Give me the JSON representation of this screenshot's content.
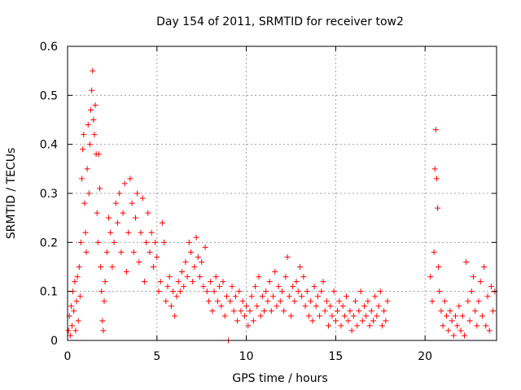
{
  "chart_data": {
    "type": "scatter",
    "title": "Day 154 of 2011, SRMTID for receiver tow2",
    "xlabel": "GPS time / hours",
    "ylabel": "SRMTID / TECUs",
    "xlim": [
      0,
      24
    ],
    "ylim": [
      0,
      0.6
    ],
    "xticks": [
      0,
      5,
      10,
      15,
      20
    ],
    "xtick_labels": [
      "0",
      "5",
      "10",
      "15",
      "20"
    ],
    "yticks": [
      0,
      0.1,
      0.2,
      0.3,
      0.4,
      0.5,
      0.6
    ],
    "ytick_labels": [
      "0",
      "0.1",
      "0.2",
      "0.3",
      "0.4",
      "0.5",
      "0.6"
    ],
    "grid": true,
    "marker": "plus",
    "color": "#ff0000",
    "series": [
      {
        "name": "SRMTID",
        "points": [
          [
            0.05,
            0.02
          ],
          [
            0.1,
            0.05
          ],
          [
            0.15,
            0.01
          ],
          [
            0.2,
            0.07
          ],
          [
            0.25,
            0.03
          ],
          [
            0.3,
            0.1
          ],
          [
            0.35,
            0.06
          ],
          [
            0.4,
            0.12
          ],
          [
            0.45,
            0.02
          ],
          [
            0.5,
            0.08
          ],
          [
            0.55,
            0.13
          ],
          [
            0.6,
            0.04
          ],
          [
            0.65,
            0.15
          ],
          [
            0.7,
            0.09
          ],
          [
            0.75,
            0.2
          ],
          [
            0.8,
            0.33
          ],
          [
            0.85,
            0.39
          ],
          [
            0.9,
            0.42
          ],
          [
            0.95,
            0.28
          ],
          [
            1.0,
            0.22
          ],
          [
            1.05,
            0.18
          ],
          [
            1.1,
            0.35
          ],
          [
            1.15,
            0.44
          ],
          [
            1.2,
            0.3
          ],
          [
            1.25,
            0.4
          ],
          [
            1.3,
            0.47
          ],
          [
            1.35,
            0.51
          ],
          [
            1.4,
            0.55
          ],
          [
            1.45,
            0.45
          ],
          [
            1.5,
            0.42
          ],
          [
            1.55,
            0.48
          ],
          [
            1.6,
            0.38
          ],
          [
            1.65,
            0.26
          ],
          [
            1.7,
            0.2
          ],
          [
            1.75,
            0.38
          ],
          [
            1.8,
            0.31
          ],
          [
            1.85,
            0.15
          ],
          [
            1.9,
            0.1
          ],
          [
            1.95,
            0.04
          ],
          [
            2.0,
            0.02
          ],
          [
            2.05,
            0.08
          ],
          [
            2.1,
            0.12
          ],
          [
            2.2,
            0.18
          ],
          [
            2.3,
            0.25
          ],
          [
            2.4,
            0.22
          ],
          [
            2.5,
            0.15
          ],
          [
            2.6,
            0.2
          ],
          [
            2.7,
            0.28
          ],
          [
            2.8,
            0.24
          ],
          [
            2.9,
            0.3
          ],
          [
            3.0,
            0.18
          ],
          [
            3.1,
            0.26
          ],
          [
            3.2,
            0.32
          ],
          [
            3.3,
            0.14
          ],
          [
            3.4,
            0.22
          ],
          [
            3.5,
            0.33
          ],
          [
            3.6,
            0.28
          ],
          [
            3.7,
            0.18
          ],
          [
            3.8,
            0.25
          ],
          [
            3.9,
            0.3
          ],
          [
            4.0,
            0.16
          ],
          [
            4.1,
            0.22
          ],
          [
            4.2,
            0.29
          ],
          [
            4.3,
            0.12
          ],
          [
            4.4,
            0.2
          ],
          [
            4.5,
            0.26
          ],
          [
            4.6,
            0.18
          ],
          [
            4.7,
            0.22
          ],
          [
            4.8,
            0.15
          ],
          [
            4.9,
            0.2
          ],
          [
            5.0,
            0.17
          ],
          [
            5.1,
            0.1
          ],
          [
            5.2,
            0.12
          ],
          [
            5.3,
            0.24
          ],
          [
            5.4,
            0.2
          ],
          [
            5.5,
            0.08
          ],
          [
            5.6,
            0.11
          ],
          [
            5.7,
            0.13
          ],
          [
            5.8,
            0.07
          ],
          [
            5.9,
            0.1
          ],
          [
            6.0,
            0.05
          ],
          [
            6.1,
            0.09
          ],
          [
            6.2,
            0.12
          ],
          [
            6.3,
            0.1
          ],
          [
            6.4,
            0.14
          ],
          [
            6.5,
            0.11
          ],
          [
            6.6,
            0.16
          ],
          [
            6.7,
            0.13
          ],
          [
            6.8,
            0.2
          ],
          [
            6.9,
            0.18
          ],
          [
            7.0,
            0.12
          ],
          [
            7.1,
            0.15
          ],
          [
            7.2,
            0.21
          ],
          [
            7.3,
            0.17
          ],
          [
            7.4,
            0.13
          ],
          [
            7.5,
            0.16
          ],
          [
            7.6,
            0.11
          ],
          [
            7.7,
            0.19
          ],
          [
            7.8,
            0.1
          ],
          [
            7.9,
            0.08
          ],
          [
            8.0,
            0.12
          ],
          [
            8.1,
            0.06
          ],
          [
            8.2,
            0.1
          ],
          [
            8.3,
            0.13
          ],
          [
            8.4,
            0.08
          ],
          [
            8.5,
            0.11
          ],
          [
            8.6,
            0.07
          ],
          [
            8.7,
            0.12
          ],
          [
            8.8,
            0.05
          ],
          [
            8.9,
            0.09
          ],
          [
            9.0,
            0.0
          ],
          [
            9.1,
            0.08
          ],
          [
            9.2,
            0.11
          ],
          [
            9.3,
            0.06
          ],
          [
            9.4,
            0.09
          ],
          [
            9.5,
            0.04
          ],
          [
            9.6,
            0.1
          ],
          [
            9.7,
            0.06
          ],
          [
            9.8,
            0.08
          ],
          [
            9.9,
            0.05
          ],
          [
            10.0,
            0.07
          ],
          [
            10.1,
            0.03
          ],
          [
            10.2,
            0.06
          ],
          [
            10.3,
            0.09
          ],
          [
            10.4,
            0.04
          ],
          [
            10.5,
            0.11
          ],
          [
            10.6,
            0.07
          ],
          [
            10.7,
            0.13
          ],
          [
            10.8,
            0.05
          ],
          [
            10.9,
            0.09
          ],
          [
            11.0,
            0.06
          ],
          [
            11.1,
            0.1
          ],
          [
            11.2,
            0.08
          ],
          [
            11.3,
            0.12
          ],
          [
            11.4,
            0.06
          ],
          [
            11.5,
            0.09
          ],
          [
            11.6,
            0.14
          ],
          [
            11.7,
            0.07
          ],
          [
            11.8,
            0.11
          ],
          [
            11.9,
            0.08
          ],
          [
            12.0,
            0.1
          ],
          [
            12.1,
            0.06
          ],
          [
            12.2,
            0.13
          ],
          [
            12.3,
            0.17
          ],
          [
            12.4,
            0.09
          ],
          [
            12.5,
            0.05
          ],
          [
            12.6,
            0.11
          ],
          [
            12.7,
            0.08
          ],
          [
            12.8,
            0.12
          ],
          [
            12.9,
            0.1
          ],
          [
            13.0,
            0.15
          ],
          [
            13.1,
            0.09
          ],
          [
            13.2,
            0.13
          ],
          [
            13.3,
            0.07
          ],
          [
            13.4,
            0.1
          ],
          [
            13.5,
            0.05
          ],
          [
            13.6,
            0.08
          ],
          [
            13.7,
            0.04
          ],
          [
            13.8,
            0.11
          ],
          [
            13.9,
            0.07
          ],
          [
            14.0,
            0.09
          ],
          [
            14.1,
            0.05
          ],
          [
            14.2,
            0.1
          ],
          [
            14.3,
            0.12
          ],
          [
            14.4,
            0.06
          ],
          [
            14.5,
            0.08
          ],
          [
            14.6,
            0.03
          ],
          [
            14.7,
            0.07
          ],
          [
            14.8,
            0.05
          ],
          [
            14.9,
            0.1
          ],
          [
            15.0,
            0.04
          ],
          [
            15.1,
            0.06
          ],
          [
            15.2,
            0.08
          ],
          [
            15.3,
            0.03
          ],
          [
            15.4,
            0.07
          ],
          [
            15.5,
            0.05
          ],
          [
            15.6,
            0.09
          ],
          [
            15.7,
            0.04
          ],
          [
            15.8,
            0.06
          ],
          [
            15.9,
            0.02
          ],
          [
            16.0,
            0.05
          ],
          [
            16.1,
            0.08
          ],
          [
            16.2,
            0.03
          ],
          [
            16.3,
            0.06
          ],
          [
            16.4,
            0.1
          ],
          [
            16.5,
            0.04
          ],
          [
            16.6,
            0.07
          ],
          [
            16.7,
            0.05
          ],
          [
            16.8,
            0.08
          ],
          [
            16.9,
            0.03
          ],
          [
            17.0,
            0.06
          ],
          [
            17.1,
            0.04
          ],
          [
            17.2,
            0.09
          ],
          [
            17.3,
            0.05
          ],
          [
            17.4,
            0.07
          ],
          [
            17.5,
            0.1
          ],
          [
            17.6,
            0.03
          ],
          [
            17.7,
            0.06
          ],
          [
            17.8,
            0.04
          ],
          [
            17.9,
            0.08
          ],
          [
            20.3,
            0.13
          ],
          [
            20.4,
            0.08
          ],
          [
            20.5,
            0.18
          ],
          [
            20.55,
            0.35
          ],
          [
            20.6,
            0.43
          ],
          [
            20.65,
            0.33
          ],
          [
            20.7,
            0.27
          ],
          [
            20.75,
            0.15
          ],
          [
            20.8,
            0.1
          ],
          [
            20.9,
            0.06
          ],
          [
            21.0,
            0.03
          ],
          [
            21.1,
            0.08
          ],
          [
            21.2,
            0.05
          ],
          [
            21.3,
            0.02
          ],
          [
            21.4,
            0.06
          ],
          [
            21.5,
            0.04
          ],
          [
            21.6,
            0.01
          ],
          [
            21.7,
            0.05
          ],
          [
            21.8,
            0.03
          ],
          [
            21.9,
            0.07
          ],
          [
            22.0,
            0.02
          ],
          [
            22.1,
            0.05
          ],
          [
            22.2,
            0.01
          ],
          [
            22.3,
            0.16
          ],
          [
            22.4,
            0.08
          ],
          [
            22.5,
            0.04
          ],
          [
            22.6,
            0.1
          ],
          [
            22.7,
            0.13
          ],
          [
            22.8,
            0.06
          ],
          [
            22.9,
            0.03
          ],
          [
            23.0,
            0.08
          ],
          [
            23.1,
            0.12
          ],
          [
            23.2,
            0.05
          ],
          [
            23.3,
            0.15
          ],
          [
            23.4,
            0.03
          ],
          [
            23.5,
            0.09
          ],
          [
            23.6,
            0.02
          ],
          [
            23.7,
            0.11
          ],
          [
            23.8,
            0.06
          ],
          [
            23.9,
            0.1
          ]
        ]
      }
    ]
  }
}
